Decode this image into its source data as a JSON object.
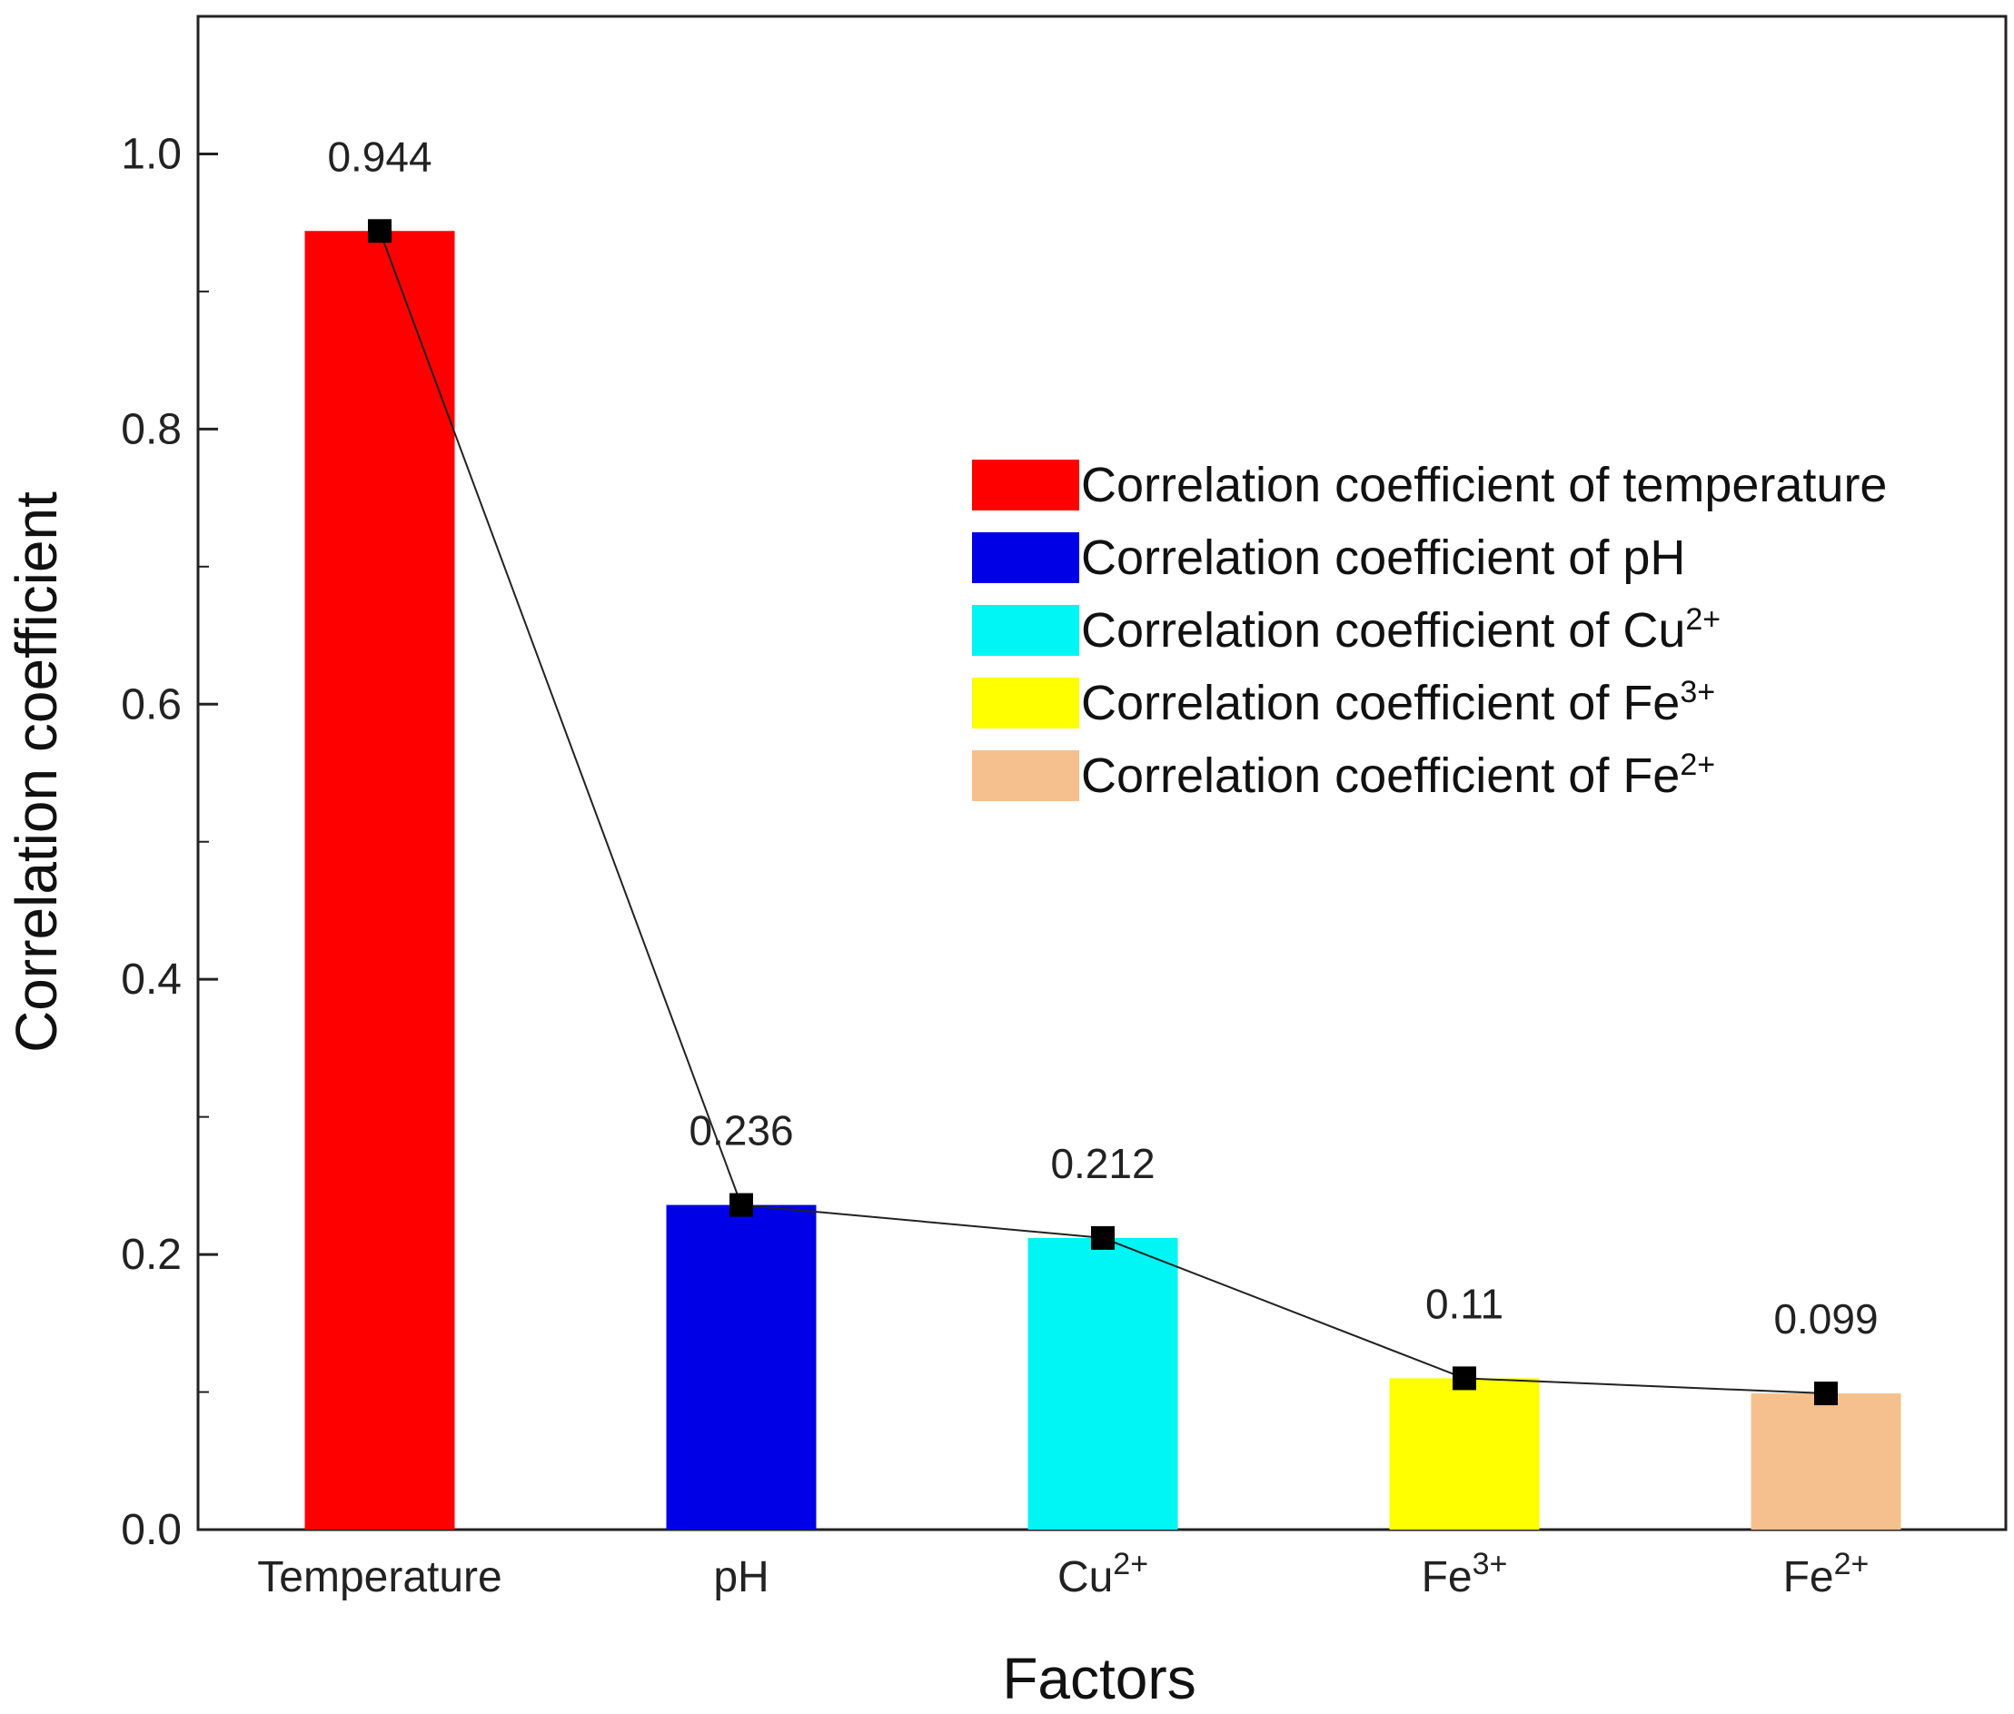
{
  "chart_data": {
    "type": "bar",
    "xlabel": "Factors",
    "ylabel": "Correlation coefficient",
    "ylim": [
      0,
      1.1
    ],
    "yticks": [
      "0.0",
      "0.2",
      "0.4",
      "0.6",
      "0.8",
      "1.0"
    ],
    "grid": false,
    "legend_position": "top-right",
    "categories": [
      {
        "base": "Temperature",
        "sup": ""
      },
      {
        "base": "pH",
        "sup": ""
      },
      {
        "base": "Cu",
        "sup": "2+"
      },
      {
        "base": "Fe",
        "sup": "3+"
      },
      {
        "base": "Fe",
        "sup": "2+"
      }
    ],
    "values": [
      0.944,
      0.236,
      0.212,
      0.11,
      0.099
    ],
    "value_labels": [
      "0.944",
      "0.236",
      "0.212",
      "0.11",
      "0.099"
    ],
    "colors": [
      "#ff0000",
      "#0000e6",
      "#00f5f5",
      "#ffff00",
      "#f5c08e"
    ],
    "line_series": {
      "values": [
        0.944,
        0.236,
        0.212,
        0.11,
        0.099
      ],
      "marker": "square",
      "color": "#222222"
    },
    "legend": [
      {
        "base": "Correlation coefficient of temperature",
        "sup": "",
        "color": "#ff0000"
      },
      {
        "base": "Correlation coefficient of pH",
        "sup": "",
        "color": "#0000e6"
      },
      {
        "base": "Correlation coefficient of Cu",
        "sup": "2+",
        "color": "#00f5f5"
      },
      {
        "base": "Correlation coefficient of Fe",
        "sup": "3+",
        "color": "#ffff00"
      },
      {
        "base": "Correlation coefficient of Fe",
        "sup": "2+",
        "color": "#f5c08e"
      }
    ]
  }
}
